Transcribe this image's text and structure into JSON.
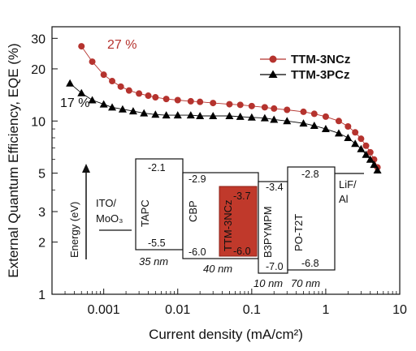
{
  "chart_data": {
    "type": "scatter",
    "xlabel": "Current density (mA/cm²)",
    "ylabel": "External Quantum Efficiency, EQE (%)",
    "xscale": "log",
    "yscale": "log",
    "xlim": [
      0.0002,
      10
    ],
    "ylim": [
      1,
      35
    ],
    "xticks": [
      {
        "value": 0.001,
        "label": "0.001"
      },
      {
        "value": 0.01,
        "label": "0.01"
      },
      {
        "value": 0.1,
        "label": "0.1"
      },
      {
        "value": 1,
        "label": "1"
      },
      {
        "value": 10,
        "label": "10"
      }
    ],
    "yticks": [
      {
        "value": 1,
        "label": "1"
      },
      {
        "value": 2,
        "label": "2"
      },
      {
        "value": 3,
        "label": "3"
      },
      {
        "value": 5,
        "label": "5"
      },
      {
        "value": 10,
        "label": "10"
      },
      {
        "value": 20,
        "label": "20"
      },
      {
        "value": 30,
        "label": "30"
      }
    ],
    "legend_position": "top-right",
    "series": [
      {
        "name": "TTM-3NCz",
        "marker": "circle",
        "color": "#b5332e",
        "x": [
          0.0005,
          0.0007,
          0.001,
          0.0013,
          0.0017,
          0.0022,
          0.003,
          0.004,
          0.005,
          0.007,
          0.01,
          0.015,
          0.02,
          0.03,
          0.05,
          0.07,
          0.1,
          0.15,
          0.2,
          0.3,
          0.5,
          0.7,
          1.0,
          1.5,
          2.0,
          2.5,
          3.0,
          3.5,
          4.0,
          4.5,
          5.0
        ],
        "y": [
          27,
          22,
          18.5,
          17,
          15.8,
          15,
          14.4,
          14,
          13.7,
          13.4,
          13.2,
          13,
          12.9,
          12.7,
          12.5,
          12.4,
          12.2,
          12,
          11.8,
          11.6,
          11.3,
          11,
          10.6,
          10,
          9.3,
          8.6,
          7.9,
          7.2,
          6.6,
          6.0,
          5.4
        ]
      },
      {
        "name": "TTM-3PCz",
        "marker": "triangle",
        "color": "#000000",
        "x": [
          0.00035,
          0.0005,
          0.0007,
          0.001,
          0.0013,
          0.0018,
          0.0025,
          0.0035,
          0.005,
          0.007,
          0.01,
          0.015,
          0.02,
          0.03,
          0.05,
          0.07,
          0.1,
          0.15,
          0.2,
          0.3,
          0.5,
          0.7,
          1.0,
          1.5,
          2.0,
          2.5,
          3.0,
          3.5,
          4.0,
          4.5,
          5.0
        ],
        "y": [
          16.5,
          14.5,
          13.2,
          12.5,
          12,
          11.7,
          11.4,
          11.1,
          10.9,
          10.8,
          10.8,
          10.8,
          10.7,
          10.7,
          10.7,
          10.6,
          10.5,
          10.4,
          10.2,
          10,
          9.7,
          9.4,
          9.0,
          8.5,
          8.0,
          7.4,
          6.9,
          6.4,
          6.0,
          5.6,
          5.2
        ]
      }
    ],
    "annotations": [
      {
        "text": "27 %",
        "color": "#b5332e"
      },
      {
        "text": "17 %",
        "color": "#111111"
      }
    ],
    "inset": {
      "axis_label": "Energy (eV)",
      "layers": [
        {
          "name": "ITO/\nMoO₃",
          "level": "",
          "thickness": ""
        },
        {
          "name": "TAPC",
          "homo": "-5.5",
          "lumo": "-2.1",
          "thickness": "35 nm"
        },
        {
          "name": "CBP",
          "homo": "-6.0",
          "lumo": "-2.9",
          "thickness": "40 nm"
        },
        {
          "name": "TTM-3NCz",
          "homo": "-6.0",
          "lumo": "-3.7",
          "thickness": ""
        },
        {
          "name": "B3PYMPM",
          "homo": "-7.0",
          "lumo": "-3.4",
          "thickness": "10 nm"
        },
        {
          "name": "PO-T2T",
          "homo": "-6.8",
          "lumo": "-2.8",
          "thickness": "70 nm"
        },
        {
          "name": "LiF/\nAl",
          "level": "",
          "thickness": ""
        }
      ]
    }
  }
}
